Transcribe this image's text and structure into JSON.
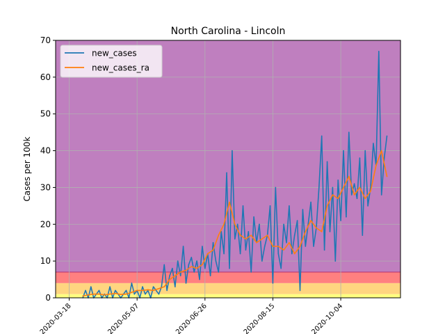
{
  "chart_data": {
    "type": "line",
    "title": "North Carolina - Lincoln",
    "xlabel": "",
    "ylabel": "Cases per 100k",
    "ylim": [
      0,
      70
    ],
    "yticks": [
      0,
      10,
      20,
      30,
      40,
      50,
      60,
      70
    ],
    "xlim_days": [
      -10,
      244
    ],
    "xticks": [
      {
        "day": 0,
        "label": "2020-03-18"
      },
      {
        "day": 50,
        "label": "2020-05-07"
      },
      {
        "day": 100,
        "label": "2020-06-26"
      },
      {
        "day": 150,
        "label": "2020-08-15"
      },
      {
        "day": 200,
        "label": "2020-10-04"
      }
    ],
    "bands": [
      {
        "from": 0,
        "to": 1,
        "color": "#ffff80"
      },
      {
        "from": 1,
        "to": 4,
        "color": "#ffd580"
      },
      {
        "from": 4,
        "to": 7,
        "color": "#ff8080"
      },
      {
        "from": 7,
        "to": 70,
        "color": "#bf7fbf"
      }
    ],
    "grid": true,
    "legend_position": "top-left",
    "series": [
      {
        "name": "new_cases",
        "color": "#1f77b4",
        "x": [
          10,
          12,
          14,
          16,
          18,
          20,
          22,
          24,
          26,
          28,
          30,
          32,
          34,
          36,
          38,
          40,
          42,
          44,
          46,
          48,
          50,
          52,
          54,
          56,
          58,
          60,
          62,
          64,
          66,
          68,
          70,
          72,
          74,
          76,
          78,
          80,
          82,
          84,
          86,
          88,
          90,
          92,
          94,
          96,
          98,
          100,
          102,
          104,
          106,
          108,
          110,
          112,
          114,
          116,
          118,
          120,
          122,
          124,
          126,
          128,
          130,
          132,
          134,
          136,
          138,
          140,
          142,
          144,
          146,
          148,
          150,
          152,
          154,
          156,
          158,
          160,
          162,
          164,
          166,
          168,
          170,
          172,
          174,
          176,
          178,
          180,
          182,
          184,
          186,
          188,
          190,
          192,
          194,
          196,
          198,
          200,
          202,
          204,
          206,
          208,
          210,
          212,
          214,
          216,
          218,
          220,
          222,
          224,
          226,
          228,
          230,
          232,
          234
        ],
        "y": [
          0,
          2,
          0,
          3,
          0,
          1,
          2,
          0,
          1,
          0,
          3,
          0,
          2,
          1,
          0,
          1,
          2,
          0,
          4,
          1,
          2,
          0,
          3,
          1,
          2,
          0,
          3,
          2,
          1,
          3,
          9,
          2,
          6,
          8,
          3,
          10,
          6,
          14,
          4,
          9,
          11,
          7,
          10,
          5,
          14,
          8,
          12,
          6,
          15,
          10,
          7,
          18,
          12,
          34,
          8,
          40,
          16,
          20,
          12,
          25,
          13,
          18,
          7,
          22,
          15,
          20,
          10,
          14,
          17,
          25,
          4,
          30,
          12,
          8,
          20,
          15,
          25,
          12,
          17,
          21,
          2,
          24,
          14,
          20,
          26,
          14,
          19,
          30,
          44,
          13,
          37,
          18,
          30,
          10,
          32,
          21,
          40,
          22,
          45,
          28,
          31,
          27,
          38,
          17,
          40,
          25,
          30,
          42,
          36,
          67,
          28,
          38,
          44
        ],
        "values": [
          0,
          2,
          0,
          3,
          0,
          1,
          2,
          0,
          1,
          0,
          3,
          0,
          2,
          1,
          0,
          1,
          2,
          0,
          4,
          1,
          2,
          0,
          3,
          1,
          2,
          0,
          3,
          2,
          1,
          3,
          9,
          2,
          6,
          8,
          3,
          10,
          6,
          14,
          4,
          9,
          11,
          7,
          10,
          5,
          14,
          8,
          12,
          6,
          15,
          10,
          7,
          18,
          12,
          34,
          8,
          40,
          16,
          20,
          12,
          25,
          13,
          18,
          7,
          22,
          15,
          20,
          10,
          14,
          17,
          25,
          4,
          30,
          12,
          8,
          20,
          15,
          25,
          12,
          17,
          21,
          2,
          24,
          14,
          20,
          26,
          14,
          19,
          30,
          44,
          13,
          37,
          18,
          30,
          10,
          32,
          21,
          40,
          22,
          45,
          28,
          31,
          27,
          38,
          17,
          40,
          25,
          30,
          42,
          36,
          67,
          28,
          38,
          44
        ]
      },
      {
        "name": "new_cases_ra",
        "color": "#ff7f0e",
        "x": [
          10,
          14,
          18,
          22,
          26,
          30,
          34,
          38,
          42,
          46,
          50,
          54,
          58,
          62,
          66,
          70,
          74,
          78,
          82,
          86,
          90,
          94,
          98,
          102,
          106,
          110,
          114,
          118,
          122,
          126,
          130,
          134,
          138,
          142,
          146,
          150,
          154,
          158,
          162,
          166,
          170,
          174,
          178,
          182,
          186,
          190,
          194,
          198,
          202,
          206,
          210,
          214,
          218,
          222,
          226,
          230,
          234
        ],
        "y": [
          0.5,
          0.8,
          1,
          1,
          0.8,
          1,
          1.2,
          0.9,
          1,
          1.5,
          2,
          2,
          2.2,
          2,
          2.5,
          3,
          5,
          6,
          7,
          7.5,
          8.5,
          8,
          9,
          12,
          13,
          17,
          20,
          26,
          20,
          17,
          16,
          17,
          15,
          16,
          17,
          14,
          14,
          13,
          15,
          12,
          14,
          18,
          21,
          19,
          18,
          25,
          28,
          27,
          30,
          33,
          28,
          30,
          27,
          29,
          36,
          40,
          33
        ],
        "values": [
          0.5,
          0.8,
          1,
          1,
          0.8,
          1,
          1.2,
          0.9,
          1,
          1.5,
          2,
          2,
          2.2,
          2,
          2.5,
          3,
          5,
          6,
          7,
          7.5,
          8.5,
          8,
          9,
          12,
          13,
          17,
          20,
          26,
          20,
          17,
          16,
          17,
          15,
          16,
          17,
          14,
          14,
          13,
          15,
          12,
          14,
          18,
          21,
          19,
          18,
          25,
          28,
          27,
          30,
          33,
          28,
          30,
          27,
          29,
          36,
          40,
          33
        ]
      }
    ]
  }
}
